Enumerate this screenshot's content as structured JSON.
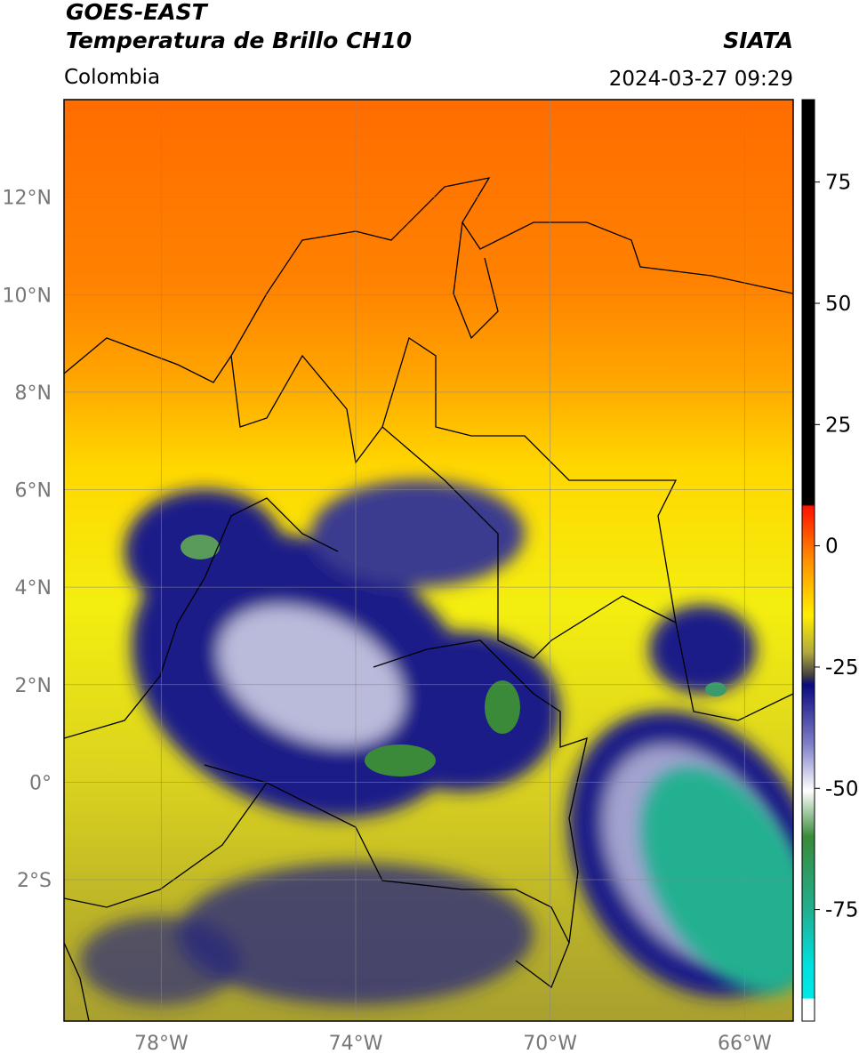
{
  "header": {
    "title_line1": "GOES-EAST",
    "title_line2": "Temperatura de Brillo CH10",
    "source": "SIATA",
    "region": "Colombia",
    "datetime": "2024-03-27 09:29"
  },
  "map": {
    "xlim": [
      -80,
      -65
    ],
    "ylim": [
      -4.9,
      14
    ],
    "xticks": [
      {
        "value": -78,
        "label": "78°W"
      },
      {
        "value": -74,
        "label": "74°W"
      },
      {
        "value": -70,
        "label": "70°W"
      },
      {
        "value": -66,
        "label": "66°W"
      }
    ],
    "yticks": [
      {
        "value": 12,
        "label": "12°N"
      },
      {
        "value": 10,
        "label": "10°N"
      },
      {
        "value": 8,
        "label": "8°N"
      },
      {
        "value": 6,
        "label": "6°N"
      },
      {
        "value": 4,
        "label": "4°N"
      },
      {
        "value": 2,
        "label": "2°N"
      },
      {
        "value": 0,
        "label": "0°"
      },
      {
        "value": -2,
        "label": "2°S"
      }
    ],
    "grid": true
  },
  "colorbar": {
    "lim": [
      -98,
      92
    ],
    "ticks": [
      75,
      50,
      25,
      0,
      -25,
      -50,
      -75
    ]
  }
}
